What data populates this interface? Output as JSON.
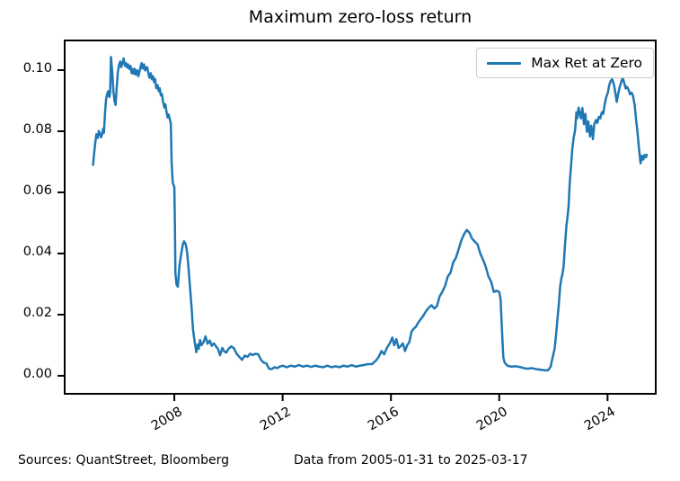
{
  "title": "Maximum zero-loss return",
  "legend": {
    "label": "Max Ret at Zero"
  },
  "footer": {
    "sources": "Sources: QuantStreet, Bloomberg",
    "date_range": "Data from 2005-01-31 to 2025-03-17"
  },
  "colors": {
    "line": "#1f77b4",
    "axis": "#000000",
    "text": "#000000",
    "legend_border": "#cccccc",
    "background": "#ffffff"
  },
  "chart_data": {
    "type": "line",
    "title": "Maximum zero-loss return",
    "xlabel": "",
    "ylabel": "",
    "grid": false,
    "legend_position": "upper right",
    "xlim": [
      2003.95,
      2025.78
    ],
    "ylim": [
      -0.0059,
      0.1097
    ],
    "x_ticks": [
      {
        "value": 2008,
        "label": "2008"
      },
      {
        "value": 2012,
        "label": "2012"
      },
      {
        "value": 2016,
        "label": "2016"
      },
      {
        "value": 2020,
        "label": "2020"
      },
      {
        "value": 2024,
        "label": "2024"
      }
    ],
    "y_ticks": [
      {
        "value": 0.0,
        "label": "0.00"
      },
      {
        "value": 0.02,
        "label": "0.02"
      },
      {
        "value": 0.04,
        "label": "0.04"
      },
      {
        "value": 0.06,
        "label": "0.06"
      },
      {
        "value": 0.08,
        "label": "0.08"
      },
      {
        "value": 0.1,
        "label": "0.10"
      }
    ],
    "series": [
      {
        "name": "Max Ret at Zero",
        "color": "#1f77b4",
        "points": [
          [
            2005.0,
            0.069
          ],
          [
            2005.04,
            0.073
          ],
          [
            2005.08,
            0.0762
          ],
          [
            2005.12,
            0.079
          ],
          [
            2005.17,
            0.0778
          ],
          [
            2005.21,
            0.0801
          ],
          [
            2005.25,
            0.0793
          ],
          [
            2005.29,
            0.078
          ],
          [
            2005.33,
            0.0788
          ],
          [
            2005.37,
            0.0808
          ],
          [
            2005.4,
            0.0795
          ],
          [
            2005.44,
            0.086
          ],
          [
            2005.48,
            0.0905
          ],
          [
            2005.52,
            0.0922
          ],
          [
            2005.56,
            0.0931
          ],
          [
            2005.6,
            0.0912
          ],
          [
            2005.63,
            0.0927
          ],
          [
            2005.66,
            0.1043
          ],
          [
            2005.71,
            0.099
          ],
          [
            2005.75,
            0.093
          ],
          [
            2005.79,
            0.09
          ],
          [
            2005.83,
            0.0886
          ],
          [
            2005.87,
            0.094
          ],
          [
            2005.91,
            0.099
          ],
          [
            2005.95,
            0.1014
          ],
          [
            2006.0,
            0.1028
          ],
          [
            2006.04,
            0.101
          ],
          [
            2006.08,
            0.1023
          ],
          [
            2006.13,
            0.1038
          ],
          [
            2006.17,
            0.1014
          ],
          [
            2006.21,
            0.1023
          ],
          [
            2006.25,
            0.1009
          ],
          [
            2006.29,
            0.1019
          ],
          [
            2006.33,
            0.1004
          ],
          [
            2006.38,
            0.1014
          ],
          [
            2006.42,
            0.099
          ],
          [
            2006.46,
            0.1004
          ],
          [
            2006.5,
            0.0988
          ],
          [
            2006.54,
            0.1004
          ],
          [
            2006.58,
            0.0985
          ],
          [
            2006.63,
            0.0999
          ],
          [
            2006.67,
            0.098
          ],
          [
            2006.71,
            0.0994
          ],
          [
            2006.75,
            0.1009
          ],
          [
            2006.79,
            0.1023
          ],
          [
            2006.83,
            0.1005
          ],
          [
            2006.88,
            0.1019
          ],
          [
            2006.92,
            0.0999
          ],
          [
            2006.96,
            0.1009
          ],
          [
            2007.0,
            0.1009
          ],
          [
            2007.04,
            0.099
          ],
          [
            2007.08,
            0.0975
          ],
          [
            2007.13,
            0.099
          ],
          [
            2007.17,
            0.097
          ],
          [
            2007.21,
            0.098
          ],
          [
            2007.25,
            0.0961
          ],
          [
            2007.29,
            0.0971
          ],
          [
            2007.33,
            0.0941
          ],
          [
            2007.38,
            0.0951
          ],
          [
            2007.42,
            0.0931
          ],
          [
            2007.46,
            0.0941
          ],
          [
            2007.5,
            0.0917
          ],
          [
            2007.54,
            0.0922
          ],
          [
            2007.58,
            0.0898
          ],
          [
            2007.63,
            0.0878
          ],
          [
            2007.67,
            0.0888
          ],
          [
            2007.71,
            0.0864
          ],
          [
            2007.75,
            0.0845
          ],
          [
            2007.79,
            0.0855
          ],
          [
            2007.83,
            0.084
          ],
          [
            2007.87,
            0.0825
          ],
          [
            2007.9,
            0.07
          ],
          [
            2007.94,
            0.0632
          ],
          [
            2008.0,
            0.0617
          ],
          [
            2008.02,
            0.05
          ],
          [
            2008.04,
            0.0337
          ],
          [
            2008.08,
            0.0298
          ],
          [
            2008.13,
            0.0291
          ],
          [
            2008.19,
            0.036
          ],
          [
            2008.25,
            0.0396
          ],
          [
            2008.31,
            0.0428
          ],
          [
            2008.36,
            0.044
          ],
          [
            2008.42,
            0.043
          ],
          [
            2008.47,
            0.0406
          ],
          [
            2008.52,
            0.0357
          ],
          [
            2008.58,
            0.0288
          ],
          [
            2008.64,
            0.022
          ],
          [
            2008.69,
            0.0151
          ],
          [
            2008.75,
            0.0112
          ],
          [
            2008.81,
            0.0077
          ],
          [
            2008.86,
            0.0102
          ],
          [
            2008.9,
            0.0088
          ],
          [
            2008.95,
            0.0117
          ],
          [
            2009.0,
            0.01
          ],
          [
            2009.08,
            0.011
          ],
          [
            2009.15,
            0.0129
          ],
          [
            2009.23,
            0.0105
          ],
          [
            2009.31,
            0.0115
          ],
          [
            2009.38,
            0.0098
          ],
          [
            2009.46,
            0.0106
          ],
          [
            2009.54,
            0.0096
          ],
          [
            2009.61,
            0.0088
          ],
          [
            2009.69,
            0.0067
          ],
          [
            2009.77,
            0.0091
          ],
          [
            2009.84,
            0.008
          ],
          [
            2009.92,
            0.0076
          ],
          [
            2010.0,
            0.0088
          ],
          [
            2010.1,
            0.0096
          ],
          [
            2010.2,
            0.009
          ],
          [
            2010.3,
            0.0072
          ],
          [
            2010.4,
            0.0062
          ],
          [
            2010.5,
            0.0052
          ],
          [
            2010.6,
            0.0066
          ],
          [
            2010.7,
            0.0062
          ],
          [
            2010.8,
            0.0072
          ],
          [
            2010.9,
            0.0068
          ],
          [
            2011.0,
            0.0072
          ],
          [
            2011.1,
            0.007
          ],
          [
            2011.2,
            0.0052
          ],
          [
            2011.3,
            0.0043
          ],
          [
            2011.4,
            0.004
          ],
          [
            2011.5,
            0.0023
          ],
          [
            2011.6,
            0.0022
          ],
          [
            2011.7,
            0.0028
          ],
          [
            2011.8,
            0.0025
          ],
          [
            2011.9,
            0.003
          ],
          [
            2012.0,
            0.0033
          ],
          [
            2012.15,
            0.0028
          ],
          [
            2012.3,
            0.0033
          ],
          [
            2012.45,
            0.003
          ],
          [
            2012.6,
            0.0035
          ],
          [
            2012.75,
            0.003
          ],
          [
            2012.9,
            0.0033
          ],
          [
            2013.05,
            0.0029
          ],
          [
            2013.2,
            0.0033
          ],
          [
            2013.35,
            0.003
          ],
          [
            2013.5,
            0.0028
          ],
          [
            2013.65,
            0.0033
          ],
          [
            2013.8,
            0.0028
          ],
          [
            2013.95,
            0.0031
          ],
          [
            2014.1,
            0.0028
          ],
          [
            2014.25,
            0.0033
          ],
          [
            2014.4,
            0.003
          ],
          [
            2014.55,
            0.0035
          ],
          [
            2014.7,
            0.003
          ],
          [
            2014.85,
            0.0033
          ],
          [
            2015.0,
            0.0035
          ],
          [
            2015.15,
            0.0038
          ],
          [
            2015.3,
            0.0038
          ],
          [
            2015.45,
            0.005
          ],
          [
            2015.55,
            0.0062
          ],
          [
            2015.65,
            0.0081
          ],
          [
            2015.75,
            0.007
          ],
          [
            2015.85,
            0.0091
          ],
          [
            2015.95,
            0.0105
          ],
          [
            2016.05,
            0.0125
          ],
          [
            2016.12,
            0.01
          ],
          [
            2016.2,
            0.012
          ],
          [
            2016.28,
            0.0091
          ],
          [
            2016.36,
            0.0097
          ],
          [
            2016.44,
            0.0106
          ],
          [
            2016.52,
            0.0081
          ],
          [
            2016.6,
            0.01
          ],
          [
            2016.68,
            0.011
          ],
          [
            2016.76,
            0.0144
          ],
          [
            2016.84,
            0.0154
          ],
          [
            2016.92,
            0.016
          ],
          [
            2017.0,
            0.0173
          ],
          [
            2017.1,
            0.0185
          ],
          [
            2017.2,
            0.0197
          ],
          [
            2017.3,
            0.0212
          ],
          [
            2017.4,
            0.0223
          ],
          [
            2017.5,
            0.0231
          ],
          [
            2017.6,
            0.022
          ],
          [
            2017.7,
            0.0228
          ],
          [
            2017.8,
            0.026
          ],
          [
            2017.9,
            0.0275
          ],
          [
            2018.0,
            0.0294
          ],
          [
            2018.1,
            0.0325
          ],
          [
            2018.2,
            0.0337
          ],
          [
            2018.3,
            0.0371
          ],
          [
            2018.4,
            0.0386
          ],
          [
            2018.5,
            0.0414
          ],
          [
            2018.6,
            0.0443
          ],
          [
            2018.7,
            0.0463
          ],
          [
            2018.8,
            0.0477
          ],
          [
            2018.9,
            0.0468
          ],
          [
            2019.0,
            0.0448
          ],
          [
            2019.1,
            0.0439
          ],
          [
            2019.2,
            0.0429
          ],
          [
            2019.3,
            0.04
          ],
          [
            2019.4,
            0.038
          ],
          [
            2019.5,
            0.0357
          ],
          [
            2019.6,
            0.0325
          ],
          [
            2019.7,
            0.0308
          ],
          [
            2019.8,
            0.0274
          ],
          [
            2019.9,
            0.0278
          ],
          [
            2020.0,
            0.0274
          ],
          [
            2020.05,
            0.025
          ],
          [
            2020.1,
            0.015
          ],
          [
            2020.15,
            0.006
          ],
          [
            2020.2,
            0.0043
          ],
          [
            2020.3,
            0.0033
          ],
          [
            2020.45,
            0.003
          ],
          [
            2020.6,
            0.0031
          ],
          [
            2020.75,
            0.0029
          ],
          [
            2020.9,
            0.0025
          ],
          [
            2021.05,
            0.0023
          ],
          [
            2021.2,
            0.0025
          ],
          [
            2021.35,
            0.0022
          ],
          [
            2021.5,
            0.002
          ],
          [
            2021.65,
            0.0018
          ],
          [
            2021.8,
            0.0018
          ],
          [
            2021.9,
            0.003
          ],
          [
            2021.95,
            0.0052
          ],
          [
            2022.0,
            0.007
          ],
          [
            2022.05,
            0.0091
          ],
          [
            2022.1,
            0.0136
          ],
          [
            2022.15,
            0.0185
          ],
          [
            2022.2,
            0.0234
          ],
          [
            2022.25,
            0.0292
          ],
          [
            2022.3,
            0.0322
          ],
          [
            2022.33,
            0.033
          ],
          [
            2022.38,
            0.036
          ],
          [
            2022.43,
            0.043
          ],
          [
            2022.48,
            0.049
          ],
          [
            2022.52,
            0.0519
          ],
          [
            2022.56,
            0.0553
          ],
          [
            2022.6,
            0.0626
          ],
          [
            2022.65,
            0.0685
          ],
          [
            2022.7,
            0.0744
          ],
          [
            2022.75,
            0.078
          ],
          [
            2022.8,
            0.0802
          ],
          [
            2022.85,
            0.0862
          ],
          [
            2022.89,
            0.0843
          ],
          [
            2022.93,
            0.0877
          ],
          [
            2022.97,
            0.0862
          ],
          [
            2023.02,
            0.0842
          ],
          [
            2023.07,
            0.0876
          ],
          [
            2023.13,
            0.0823
          ],
          [
            2023.18,
            0.0857
          ],
          [
            2023.24,
            0.0798
          ],
          [
            2023.29,
            0.0832
          ],
          [
            2023.35,
            0.0783
          ],
          [
            2023.4,
            0.0818
          ],
          [
            2023.46,
            0.0774
          ],
          [
            2023.51,
            0.0823
          ],
          [
            2023.57,
            0.0837
          ],
          [
            2023.62,
            0.0827
          ],
          [
            2023.68,
            0.0847
          ],
          [
            2023.73,
            0.0842
          ],
          [
            2023.79,
            0.0862
          ],
          [
            2023.84,
            0.0857
          ],
          [
            2023.9,
            0.0891
          ],
          [
            2023.95,
            0.0911
          ],
          [
            2024.01,
            0.0926
          ],
          [
            2024.06,
            0.095
          ],
          [
            2024.12,
            0.0965
          ],
          [
            2024.17,
            0.097
          ],
          [
            2024.23,
            0.0955
          ],
          [
            2024.28,
            0.093
          ],
          [
            2024.34,
            0.0896
          ],
          [
            2024.39,
            0.0921
          ],
          [
            2024.45,
            0.0945
          ],
          [
            2024.5,
            0.096
          ],
          [
            2024.56,
            0.0975
          ],
          [
            2024.61,
            0.096
          ],
          [
            2024.67,
            0.094
          ],
          [
            2024.72,
            0.0945
          ],
          [
            2024.78,
            0.0935
          ],
          [
            2024.83,
            0.0921
          ],
          [
            2024.89,
            0.0926
          ],
          [
            2024.94,
            0.0916
          ],
          [
            2025.0,
            0.0886
          ],
          [
            2025.05,
            0.0842
          ],
          [
            2025.11,
            0.0793
          ],
          [
            2025.16,
            0.0744
          ],
          [
            2025.22,
            0.0695
          ],
          [
            2025.27,
            0.072
          ],
          [
            2025.32,
            0.0707
          ],
          [
            2025.37,
            0.0723
          ],
          [
            2025.42,
            0.0715
          ],
          [
            2025.45,
            0.0723
          ]
        ]
      }
    ]
  }
}
